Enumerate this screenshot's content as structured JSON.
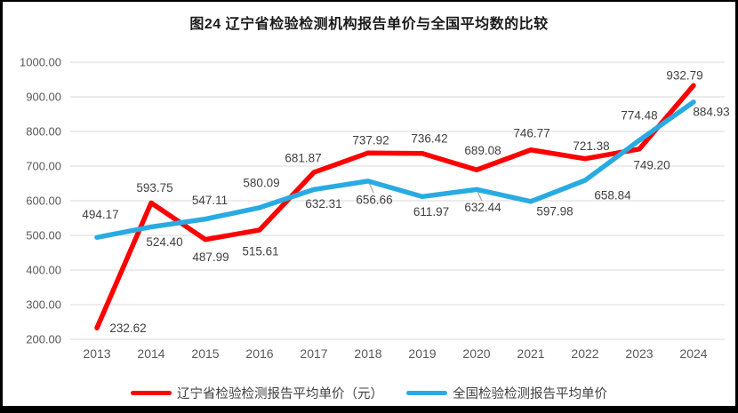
{
  "chart_data": {
    "type": "line",
    "title": "图24 辽宁省检验检测机构报告单价与全国平均数的比较",
    "categories": [
      "2013",
      "2014",
      "2015",
      "2016",
      "2017",
      "2018",
      "2019",
      "2020",
      "2021",
      "2022",
      "2023",
      "2024"
    ],
    "series": [
      {
        "name": "辽宁省检验检测报告平均单价（元）",
        "color": "#FF0000",
        "values": [
          232.62,
          593.75,
          487.99,
          515.61,
          681.87,
          737.92,
          736.42,
          689.08,
          746.77,
          721.38,
          749.2,
          932.79
        ]
      },
      {
        "name": "全国检验检测报告平均单价",
        "color": "#29ABE2",
        "values": [
          494.17,
          524.4,
          547.11,
          580.09,
          632.31,
          656.66,
          611.97,
          632.44,
          597.98,
          658.84,
          774.48,
          884.93
        ]
      }
    ],
    "ylim": [
      200,
      1000
    ],
    "y_tick_step": 100,
    "y_tick_labels": [
      "200.00",
      "300.00",
      "400.00",
      "500.00",
      "600.00",
      "700.00",
      "800.00",
      "900.00",
      "1000.00"
    ],
    "xlabel": "",
    "ylabel": "",
    "grid": "horizontal",
    "legend_position": "bottom",
    "data_labels_visible": true,
    "label_decimals": 2
  },
  "style_colors": {
    "gridline": "#D9D9D9",
    "axis_text": "#595959",
    "data_label_text": "#404040",
    "leader_line": "#A6A6A6",
    "frame": "#000000",
    "background": "#FFFFFF"
  }
}
